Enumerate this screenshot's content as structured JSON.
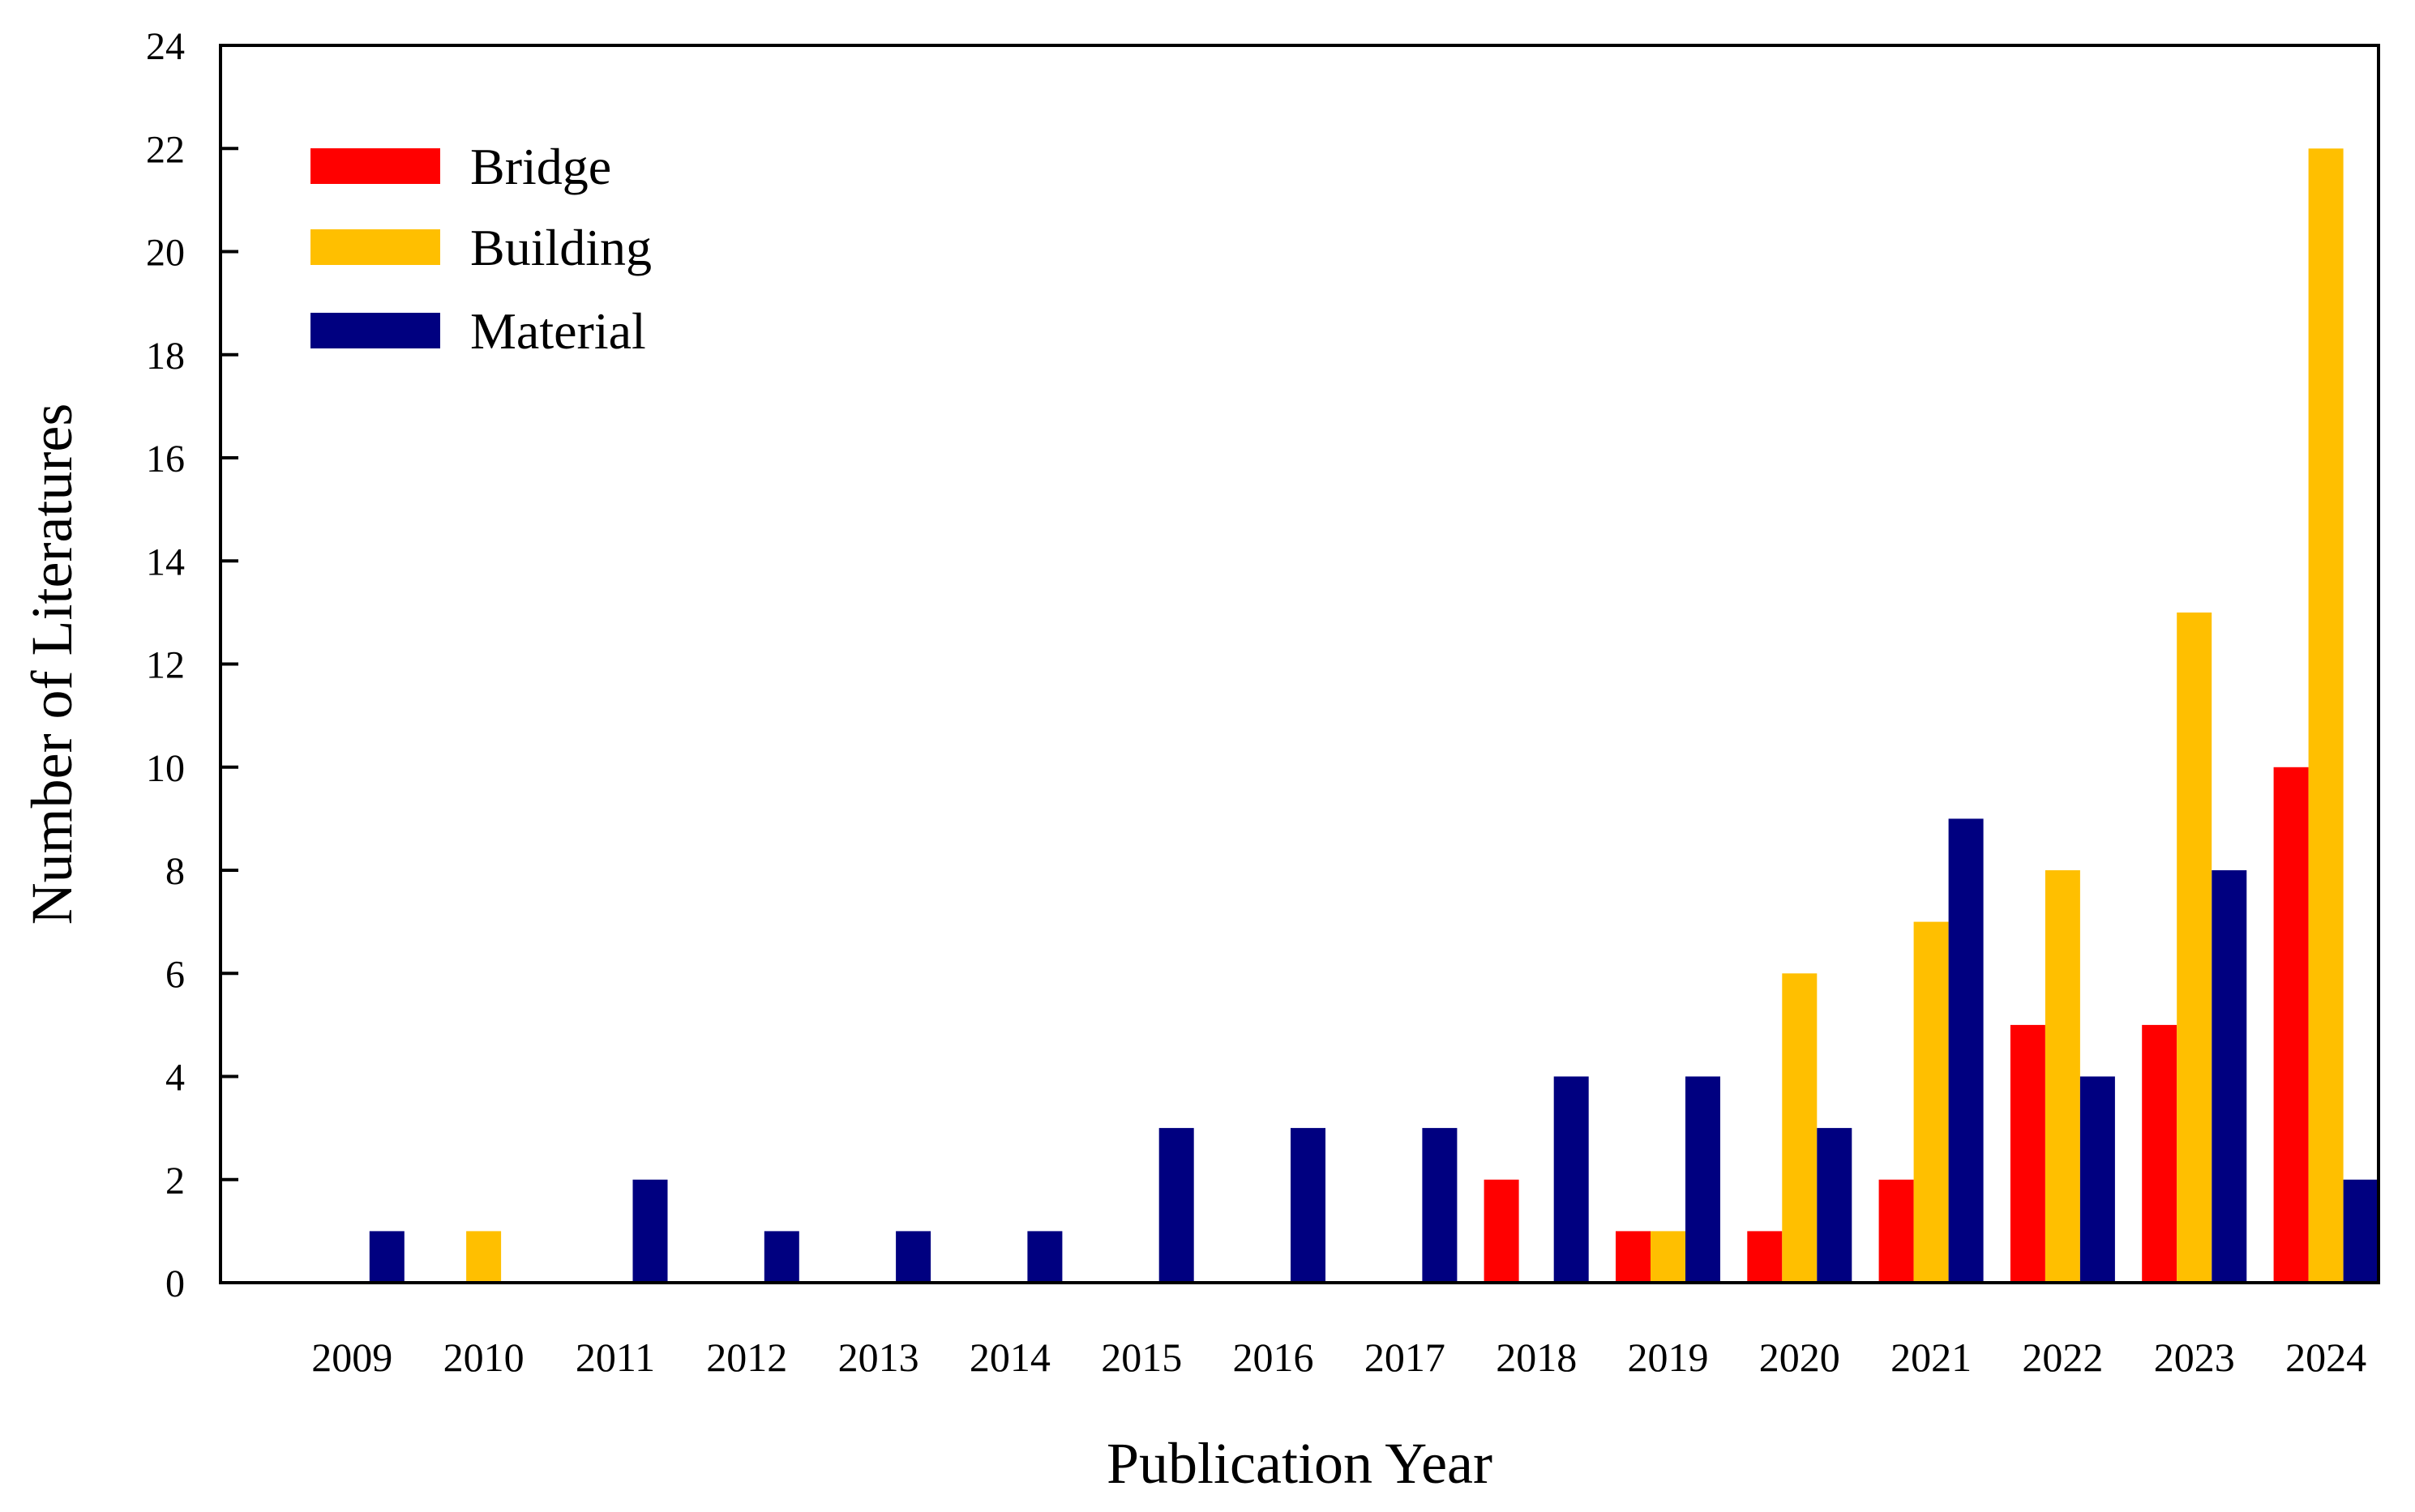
{
  "chart_data": {
    "type": "bar",
    "title": "",
    "xlabel": "Publication Year",
    "ylabel": "Number of Literatures",
    "categories": [
      "2009",
      "2010",
      "2011",
      "2012",
      "2013",
      "2014",
      "2015",
      "2016",
      "2017",
      "2018",
      "2019",
      "2020",
      "2021",
      "2022",
      "2023",
      "2024"
    ],
    "series": [
      {
        "name": "Bridge",
        "color": "#ff0000",
        "values": [
          0,
          0,
          0,
          0,
          0,
          0,
          0,
          0,
          0,
          2,
          1,
          1,
          2,
          5,
          5,
          10
        ]
      },
      {
        "name": "Building",
        "color": "#ffbf00",
        "values": [
          0,
          1,
          0,
          0,
          0,
          0,
          0,
          0,
          0,
          0,
          1,
          6,
          7,
          8,
          13,
          22
        ]
      },
      {
        "name": "Material",
        "color": "#000080",
        "values": [
          1,
          0,
          2,
          1,
          1,
          1,
          3,
          3,
          3,
          4,
          4,
          3,
          9,
          4,
          8,
          2
        ]
      }
    ],
    "ylim": [
      0,
      24
    ],
    "yticks": [
      "0",
      "2",
      "4",
      "6",
      "8",
      "10",
      "12",
      "14",
      "16",
      "18",
      "20",
      "22",
      "24"
    ],
    "grid": false,
    "legend_position": "top-left"
  }
}
